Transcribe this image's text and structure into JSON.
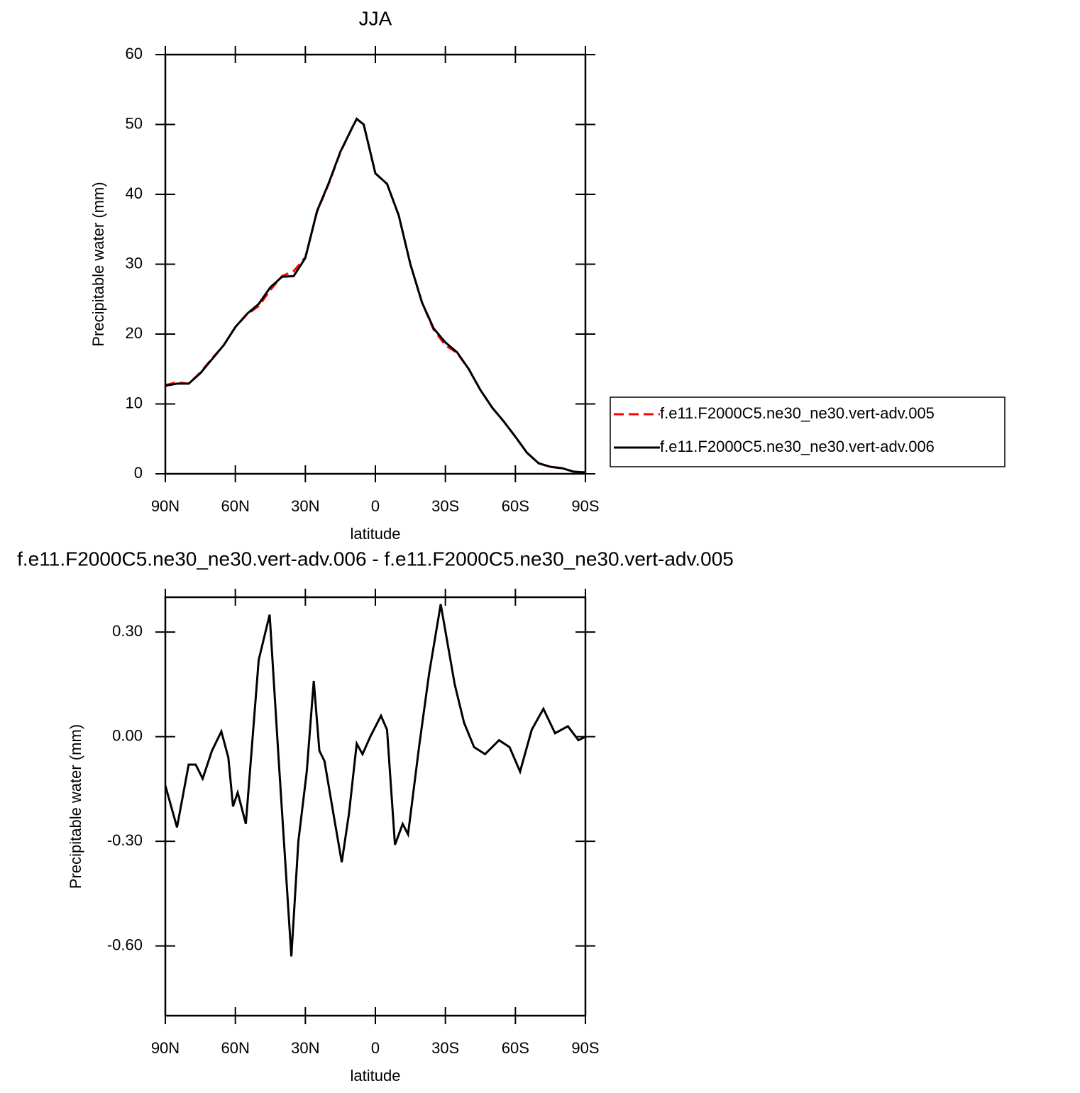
{
  "chart_data": [
    {
      "type": "line",
      "title": "JJA",
      "xlabel": "latitude",
      "ylabel": "Precipitable water (mm)",
      "x": [
        90,
        85,
        80,
        75,
        70,
        65,
        60,
        55,
        50,
        45,
        40,
        35,
        30,
        25,
        20,
        15,
        10,
        8,
        5,
        0,
        -5,
        -10,
        -15,
        -20,
        -25,
        -30,
        -35,
        -40,
        -45,
        -50,
        -55,
        -60,
        -65,
        -70,
        -75,
        -80,
        -85,
        -90
      ],
      "series": [
        {
          "name": "f.e11.F2000C5.ne30_ne30.vert-adv.005",
          "color": "#ff0000",
          "linestyle": "dashed",
          "values": [
            12.7,
            13.1,
            12.9,
            14.5,
            16.5,
            18.4,
            21.0,
            22.8,
            24.0,
            26.3,
            28.3,
            29.0,
            31.0,
            37.5,
            41.5,
            46.0,
            49.5,
            50.8,
            50.0,
            43.0,
            41.5,
            37.0,
            30.0,
            24.5,
            20.6,
            18.4,
            17.3,
            15.0,
            12.0,
            9.5,
            7.5,
            5.3,
            3.0,
            1.5,
            1.0,
            0.8,
            0.3,
            0.2
          ]
        },
        {
          "name": "f.e11.F2000C5.ne30_ne30.vert-adv.006",
          "color": "#000000",
          "linestyle": "solid",
          "values": [
            12.6,
            12.9,
            12.9,
            14.4,
            16.4,
            18.4,
            21.0,
            22.9,
            24.3,
            26.7,
            28.2,
            28.3,
            30.9,
            37.6,
            41.6,
            46.1,
            49.5,
            50.8,
            50.0,
            43.0,
            41.5,
            37.0,
            30.0,
            24.5,
            20.8,
            18.8,
            17.4,
            15.0,
            12.0,
            9.5,
            7.5,
            5.3,
            3.0,
            1.5,
            1.0,
            0.8,
            0.3,
            0.2
          ]
        }
      ],
      "xlim": [
        90,
        -90
      ],
      "xticks": [
        {
          "value": 90,
          "label": "90N"
        },
        {
          "value": 60,
          "label": "60N"
        },
        {
          "value": 30,
          "label": "30N"
        },
        0,
        {
          "value": -30,
          "label": "30S"
        },
        {
          "value": -60,
          "label": "60S"
        },
        {
          "value": -90,
          "label": "90S"
        }
      ],
      "ylim": [
        0,
        60
      ],
      "yticks": [
        0,
        10,
        20,
        30,
        40,
        50,
        60
      ],
      "legend": "right"
    },
    {
      "type": "line",
      "title": "f.e11.F2000C5.ne30_ne30.vert-adv.006 - f.e11.F2000C5.ne30_ne30.vert-adv.005",
      "xlabel": "latitude",
      "ylabel": "Precipitable water (mm)",
      "x": [
        90,
        85,
        80,
        77,
        74,
        70,
        66,
        63,
        61,
        59,
        55.5,
        50,
        45.3,
        41.3,
        36,
        33,
        29.4,
        26.4,
        24,
        21.8,
        18,
        14.4,
        11.3,
        8,
        5.5,
        2.2,
        -2.4,
        -5,
        -8.4,
        -11.7,
        -14,
        -18.7,
        -23,
        -28,
        -34,
        -38,
        -42.3,
        -47,
        -53,
        -57.5,
        -62,
        -67,
        -72,
        -77,
        -82.5,
        -87,
        -90
      ],
      "series": [
        {
          "color": "#000000",
          "linestyle": "solid",
          "values": [
            -0.14,
            -0.26,
            -0.08,
            -0.08,
            -0.12,
            -0.04,
            0.015,
            -0.06,
            -0.2,
            -0.16,
            -0.25,
            0.22,
            0.35,
            -0.08,
            -0.63,
            -0.3,
            -0.1,
            0.16,
            -0.04,
            -0.07,
            -0.22,
            -0.36,
            -0.22,
            -0.02,
            -0.05,
            0.0,
            0.06,
            0.02,
            -0.31,
            -0.25,
            -0.28,
            -0.03,
            0.18,
            0.38,
            0.15,
            0.04,
            -0.03,
            -0.05,
            -0.01,
            -0.03,
            -0.1,
            0.02,
            0.08,
            0.01,
            0.03,
            -0.01,
            0.0
          ]
        }
      ],
      "xlim": [
        90,
        -90
      ],
      "xticks": [
        {
          "value": 90,
          "label": "90N"
        },
        {
          "value": 60,
          "label": "60N"
        },
        {
          "value": 30,
          "label": "30N"
        },
        0,
        {
          "value": -30,
          "label": "30S"
        },
        {
          "value": -60,
          "label": "60S"
        },
        {
          "value": -90,
          "label": "90S"
        }
      ],
      "ylim": [
        -0.8,
        0.4
      ],
      "yticks": [
        {
          "value": -0.6,
          "label": "-0.60"
        },
        {
          "value": -0.3,
          "label": "-0.30"
        },
        {
          "value": 0,
          "label": "0.00"
        },
        {
          "value": 0.3,
          "label": "0.30"
        }
      ]
    }
  ]
}
